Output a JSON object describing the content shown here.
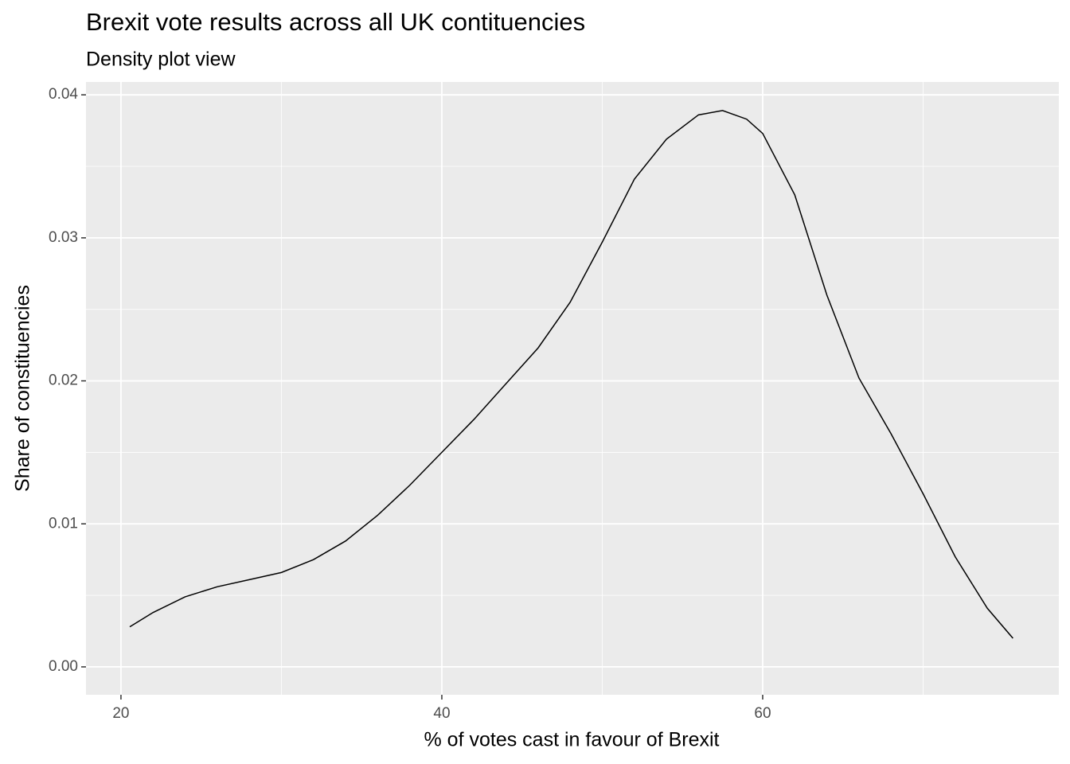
{
  "chart_data": {
    "type": "line",
    "title": "Brexit vote results across all UK contituencies",
    "subtitle": "Density plot view",
    "x_label": "% of votes cast in favour of Brexit",
    "y_label": "Share of constituencies",
    "x": [
      20.55,
      22,
      24,
      26,
      28,
      30,
      32,
      34,
      36,
      38,
      40,
      42,
      44,
      46,
      48,
      50,
      52,
      54,
      56,
      57.5,
      59,
      60,
      62,
      64,
      66,
      68,
      70,
      72,
      74,
      75.6
    ],
    "series": [
      {
        "color": "#000000",
        "values": [
          0.0028,
          0.0038,
          0.0049,
          0.0056,
          0.0061,
          0.0066,
          0.0075,
          0.0088,
          0.0106,
          0.0127,
          0.015,
          0.0173,
          0.0198,
          0.0223,
          0.0255,
          0.0297,
          0.0341,
          0.0369,
          0.0386,
          0.0389,
          0.0383,
          0.0373,
          0.033,
          0.026,
          0.0202,
          0.0163,
          0.0121,
          0.0077,
          0.0041,
          0.002
        ]
      }
    ],
    "xlim": [
      17.82,
      78.46
    ],
    "ylim": [
      -0.00195,
      0.0409
    ],
    "xticks": [
      20,
      40,
      60
    ],
    "yticks": [
      {
        "value": 0,
        "label": "0.00"
      },
      {
        "value": 0.01,
        "label": "0.01"
      },
      {
        "value": 0.02,
        "label": "0.02"
      },
      {
        "value": 0.03,
        "label": "0.03"
      },
      {
        "value": 0.04,
        "label": "0.04"
      }
    ],
    "x_minor_grid": [
      30,
      50,
      70
    ],
    "y_minor_grid": [
      0.005,
      0.015,
      0.025,
      0.035
    ],
    "grid": true,
    "panel_color": "#ebebeb"
  }
}
